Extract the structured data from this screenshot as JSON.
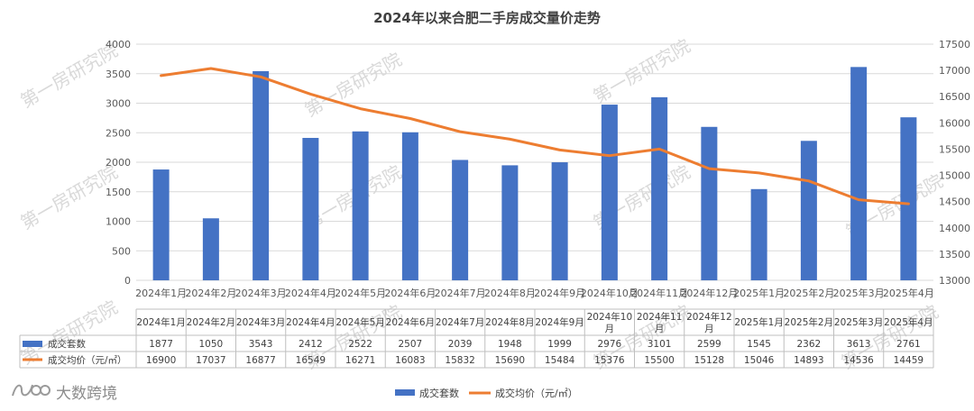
{
  "chart_data": {
    "type": "bar+line",
    "title": "2024年以来合肥二手房成交量价走势",
    "categories": [
      "2024年1月",
      "2024年2月",
      "2024年3月",
      "2024年4月",
      "2024年5月",
      "2024年6月",
      "2024年7月",
      "2024年8月",
      "2024年9月",
      "2024年10月",
      "2024年11月",
      "2024年12月",
      "2025年1月",
      "2025年2月",
      "2025年3月",
      "2025年4月"
    ],
    "table_labels": [
      [
        "2024年1月"
      ],
      [
        "2024年2月"
      ],
      [
        "2024年3月"
      ],
      [
        "2024年4月"
      ],
      [
        "2024年5月"
      ],
      [
        "2024年6月"
      ],
      [
        "2024年7月"
      ],
      [
        "2024年8月"
      ],
      [
        "2024年9月"
      ],
      [
        "2024年10",
        "月"
      ],
      [
        "2024年11",
        "月"
      ],
      [
        "2024年12",
        "月"
      ],
      [
        "2025年1月"
      ],
      [
        "2025年2月"
      ],
      [
        "2025年3月"
      ],
      [
        "2025年4月"
      ]
    ],
    "series": [
      {
        "name": "成交套数",
        "type": "bar",
        "axis": "left",
        "color": "#4472c4",
        "values": [
          1877,
          1050,
          3543,
          2412,
          2522,
          2507,
          2039,
          1948,
          1999,
          2976,
          3101,
          2599,
          1545,
          2362,
          3613,
          2761
        ]
      },
      {
        "name": "成交均价（元/㎡）",
        "type": "line",
        "axis": "right",
        "color": "#ed7d31",
        "values": [
          16900,
          17037,
          16877,
          16549,
          16271,
          16083,
          15832,
          15690,
          15484,
          15376,
          15500,
          15128,
          15046,
          14893,
          14536,
          14459
        ]
      }
    ],
    "bottom_legend": [
      "成交套数",
      "成交均价（元/㎡）"
    ],
    "y_left": {
      "min": 0,
      "max": 4000,
      "step": 500
    },
    "y_right": {
      "min": 13000,
      "max": 17500,
      "step": 500
    },
    "grid": true,
    "watermark": "第一房研究院",
    "brand": "大数跨境"
  }
}
